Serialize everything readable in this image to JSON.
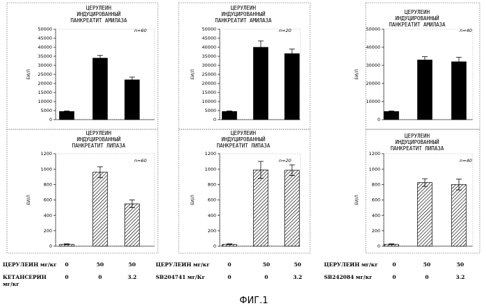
{
  "figure_label": "ФИГ.1",
  "doses": [
    {
      "rows": [
        {
          "label": "ЦЕРУЛЕИН мг/кг",
          "values": [
            "0",
            "50",
            "50"
          ]
        },
        {
          "label": "КЕТАНСЕРИН мг/кг",
          "values": [
            "0",
            "0",
            "3.2"
          ]
        }
      ]
    },
    {
      "rows": [
        {
          "label": "ЦЕРУЛЕИН мг/кг",
          "values": [
            "0",
            "50",
            "50"
          ]
        },
        {
          "label": "SB204741 мг/Кг",
          "values": [
            "0",
            "0",
            "3.2"
          ]
        }
      ]
    },
    {
      "rows": [
        {
          "label": "ЦЕРУЛЕИН мг/кг",
          "values": [
            "0",
            "50",
            "50"
          ]
        },
        {
          "label": "SB242084 мг/кг",
          "values": [
            "0",
            "0",
            "3.2"
          ]
        }
      ]
    }
  ],
  "chart_data": [
    {
      "type": "bar",
      "panel": "top-left",
      "title_lines": [
        "ЦЕРУЛЕИН",
        "ИНДУЦИРОВАННЫЙ",
        "ПАНКРЕАТИТ АМИЛАЗА"
      ],
      "n_label": "n=60",
      "ylabel": "ЕИ/Л",
      "ylim": [
        0,
        50000
      ],
      "yticks": [
        "0",
        "5000",
        "10000",
        "15000",
        "20000",
        "25000",
        "30000",
        "35000",
        "40000",
        "45000",
        "50000"
      ],
      "values": [
        4500,
        34000,
        22000
      ],
      "errors": [
        300,
        1500,
        1500
      ],
      "fill": "solid"
    },
    {
      "type": "bar",
      "panel": "top-middle",
      "title_lines": [
        "ЦЕРУЛЕИН",
        "ИНДУЦИРОВАННЫЙ",
        "ПАНКРЕАТИТ АМИЛАЗА"
      ],
      "n_label": "n=20",
      "ylabel": "ЕИ/Л",
      "ylim": [
        0,
        50000
      ],
      "yticks": [
        "0",
        "5000",
        "10000",
        "15000",
        "20000",
        "25000",
        "30000",
        "35000",
        "40000",
        "45000",
        "50000"
      ],
      "values": [
        4500,
        40000,
        36500
      ],
      "errors": [
        300,
        3500,
        2500
      ],
      "fill": "solid"
    },
    {
      "type": "bar",
      "panel": "top-right",
      "title_lines": [
        "ЦЕРУЛЕИН",
        "ИНДУЦИРОВАННЫЙ",
        "ПАНКРЕАТИТ АМИЛАЗА"
      ],
      "n_label": "n=40",
      "ylabel": "ЕИ/Л",
      "ylim": [
        0,
        50000
      ],
      "yticks": [
        "0",
        "10000",
        "20000",
        "30000",
        "40000",
        "50000"
      ],
      "values": [
        4500,
        33000,
        32000
      ],
      "errors": [
        300,
        1800,
        2500
      ],
      "fill": "solid"
    },
    {
      "type": "bar",
      "panel": "bottom-left",
      "title_lines": [
        "ЦЕРУЛЕИН",
        "ИНДУЦИРОВАННЫЙ",
        "ПАНКРЕАТИТ ЛИПАЗА"
      ],
      "n_label": "n=60",
      "ylabel": "ЕИ/Л",
      "ylim": [
        0,
        1200
      ],
      "yticks": [
        "0",
        "200",
        "400",
        "600",
        "800",
        "1000",
        "1200"
      ],
      "values": [
        25,
        960,
        550
      ],
      "errors": [
        5,
        70,
        50
      ],
      "fill": "hatched"
    },
    {
      "type": "bar",
      "panel": "bottom-middle",
      "title_lines": [
        "ЦЕРУЛЕИН",
        "ИНДУЦИРОВАННЫЙ",
        "ПАНКРЕАТИТ ЛИПАЗА"
      ],
      "n_label": "n=20",
      "ylabel": "ЕИ/Л",
      "ylim": [
        0,
        1200
      ],
      "yticks": [
        "0",
        "200",
        "400",
        "600",
        "800",
        "1000",
        "1200"
      ],
      "values": [
        25,
        990,
        985
      ],
      "errors": [
        5,
        110,
        70
      ],
      "fill": "hatched"
    },
    {
      "type": "bar",
      "panel": "bottom-right",
      "title_lines": [
        "ЦЕРУЛЕИН",
        "ИНДУЦИРОВАННЫЙ",
        "ПАНКРЕАТИТ ЛИПАЗА"
      ],
      "n_label": "n=40",
      "ylabel": "ЕИ/Л",
      "ylim": [
        0,
        1200
      ],
      "yticks": [
        "0",
        "200",
        "400",
        "600",
        "800",
        "1000",
        "1200"
      ],
      "values": [
        25,
        825,
        800
      ],
      "errors": [
        5,
        50,
        70
      ],
      "fill": "hatched"
    }
  ]
}
